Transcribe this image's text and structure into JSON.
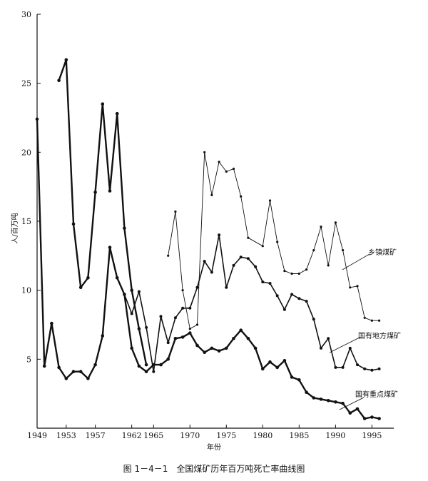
{
  "chart_data": {
    "type": "line",
    "title": "图 1－4－1　全国煤矿历年百万吨死亡率曲线图",
    "xlabel": "年份",
    "ylabel": "人/百万吨",
    "xlim": [
      1949,
      1998
    ],
    "ylim": [
      0,
      30
    ],
    "x_ticks": [
      1949,
      1953,
      1957,
      1962,
      1965,
      1970,
      1975,
      1980,
      1985,
      1990,
      1995
    ],
    "y_ticks": [
      5,
      10,
      15,
      20,
      25,
      30
    ],
    "series": [
      {
        "name": "乡镇煤矿",
        "style": "thin",
        "points": [
          [
            1967,
            12.5
          ],
          [
            1968,
            15.7
          ],
          [
            1969,
            10.0
          ],
          [
            1970,
            7.2
          ],
          [
            1971,
            7.5
          ],
          [
            1972,
            20.0
          ],
          [
            1973,
            16.9
          ],
          [
            1974,
            19.3
          ],
          [
            1975,
            18.6
          ],
          [
            1976,
            18.8
          ],
          [
            1977,
            16.8
          ],
          [
            1978,
            13.8
          ],
          [
            1980,
            13.2
          ],
          [
            1981,
            16.5
          ],
          [
            1982,
            13.5
          ],
          [
            1983,
            11.4
          ],
          [
            1984,
            11.2
          ],
          [
            1985,
            11.2
          ],
          [
            1986,
            11.5
          ],
          [
            1987,
            12.9
          ],
          [
            1988,
            14.6
          ],
          [
            1989,
            11.8
          ],
          [
            1990,
            14.9
          ],
          [
            1991,
            12.9
          ],
          [
            1992,
            10.2
          ],
          [
            1993,
            10.3
          ],
          [
            1994,
            8.0
          ],
          [
            1995,
            7.8
          ],
          [
            1996,
            7.8
          ]
        ]
      },
      {
        "name": "国有地方煤矿",
        "style": "medium",
        "points": [
          [
            1961,
            9.7
          ],
          [
            1962,
            8.3
          ],
          [
            1963,
            9.9
          ],
          [
            1964,
            7.3
          ],
          [
            1965,
            4.1
          ],
          [
            1966,
            8.1
          ],
          [
            1967,
            6.2
          ],
          [
            1968,
            8.0
          ],
          [
            1969,
            8.7
          ],
          [
            1970,
            8.7
          ],
          [
            1971,
            10.2
          ],
          [
            1972,
            12.1
          ],
          [
            1973,
            11.3
          ],
          [
            1974,
            14.0
          ],
          [
            1975,
            10.2
          ],
          [
            1976,
            11.8
          ],
          [
            1977,
            12.4
          ],
          [
            1978,
            12.3
          ],
          [
            1979,
            11.7
          ],
          [
            1980,
            10.6
          ],
          [
            1981,
            10.5
          ],
          [
            1982,
            9.6
          ],
          [
            1983,
            8.6
          ],
          [
            1984,
            9.7
          ],
          [
            1985,
            9.4
          ],
          [
            1986,
            9.2
          ],
          [
            1987,
            7.9
          ],
          [
            1988,
            5.8
          ],
          [
            1989,
            6.5
          ],
          [
            1990,
            4.4
          ],
          [
            1991,
            4.4
          ],
          [
            1992,
            5.8
          ],
          [
            1993,
            4.6
          ],
          [
            1994,
            4.3
          ],
          [
            1995,
            4.2
          ],
          [
            1996,
            4.3
          ]
        ]
      },
      {
        "name": "国有重点煤矿",
        "style": "thick",
        "points": [
          [
            1949,
            22.4
          ],
          [
            1950,
            4.5
          ],
          [
            1951,
            7.6
          ],
          [
            1952,
            4.4
          ],
          [
            1953,
            3.6
          ],
          [
            1954,
            4.1
          ],
          [
            1955,
            4.1
          ],
          [
            1956,
            3.6
          ],
          [
            1957,
            4.6
          ],
          [
            1958,
            6.7
          ],
          [
            1959,
            13.1
          ],
          [
            1960,
            10.9
          ],
          [
            1961,
            9.7
          ],
          [
            1962,
            5.8
          ],
          [
            1963,
            4.5
          ],
          [
            1964,
            4.1
          ],
          [
            1965,
            4.6
          ],
          [
            1966,
            4.6
          ],
          [
            1967,
            5.0
          ],
          [
            1968,
            6.5
          ],
          [
            1969,
            6.6
          ],
          [
            1970,
            6.9
          ],
          [
            1971,
            6.0
          ],
          [
            1972,
            5.5
          ],
          [
            1973,
            5.8
          ],
          [
            1974,
            5.6
          ],
          [
            1975,
            5.8
          ],
          [
            1976,
            6.5
          ],
          [
            1977,
            7.1
          ],
          [
            1978,
            6.5
          ],
          [
            1979,
            5.8
          ],
          [
            1980,
            4.3
          ],
          [
            1981,
            4.8
          ],
          [
            1982,
            4.4
          ],
          [
            1983,
            4.9
          ],
          [
            1984,
            3.7
          ],
          [
            1985,
            3.5
          ],
          [
            1986,
            2.6
          ],
          [
            1987,
            2.2
          ],
          [
            1988,
            2.1
          ],
          [
            1989,
            2.0
          ],
          [
            1990,
            1.9
          ],
          [
            1991,
            1.8
          ],
          [
            1992,
            1.1
          ],
          [
            1993,
            1.4
          ],
          [
            1994,
            0.7
          ],
          [
            1995,
            0.8
          ],
          [
            1996,
            0.7
          ]
        ]
      }
    ],
    "extra_segments": [
      {
        "name": "国有重点煤矿",
        "style": "thick",
        "points": [
          [
            1952,
            25.2
          ],
          [
            1953,
            26.7
          ],
          [
            1954,
            14.8
          ],
          [
            1955,
            10.2
          ],
          [
            1956,
            10.9
          ],
          [
            1957,
            17.1
          ],
          [
            1958,
            23.5
          ],
          [
            1959,
            17.2
          ],
          [
            1960,
            22.8
          ],
          [
            1961,
            14.5
          ],
          [
            1962,
            10.0
          ],
          [
            1963,
            7.2
          ],
          [
            1964,
            4.6
          ]
        ]
      }
    ],
    "grid": false,
    "legend": "inline annotations at right"
  }
}
